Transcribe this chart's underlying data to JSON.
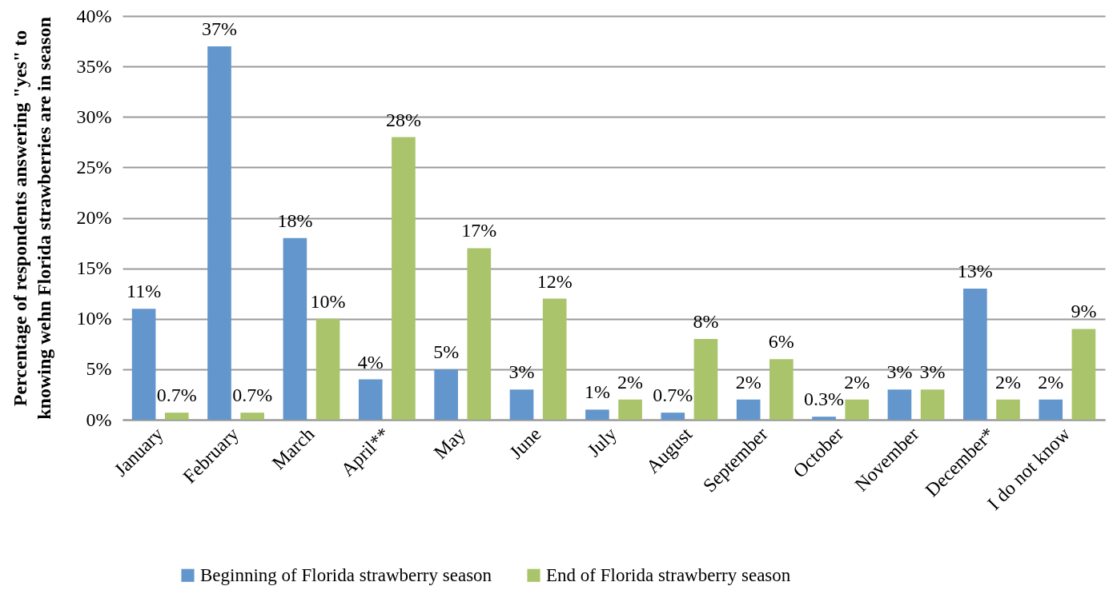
{
  "chart_data": {
    "type": "bar",
    "ylabel": "Percentage of respondents answering \"yes\" to knowing wehn Florida strawberries are in season",
    "categories": [
      "January",
      "February",
      "March",
      "April**",
      "May",
      "June",
      "July",
      "August",
      "September",
      "October",
      "November",
      "December*",
      "I do not know"
    ],
    "series": [
      {
        "name": "Beginning of Florida strawberry season",
        "color": "#6396cc",
        "values": [
          11,
          37,
          18,
          4,
          5,
          3,
          1,
          0.7,
          2,
          0.3,
          3,
          13,
          2
        ],
        "value_labels": [
          "11%",
          "37%",
          "18%",
          "4%",
          "5%",
          "3%",
          "1%",
          "0.7%",
          "2%",
          "0.3%",
          "3%",
          "13%",
          "2%"
        ]
      },
      {
        "name": "End of Florida strawberry season",
        "color": "#a9c46b",
        "values": [
          0.7,
          0.7,
          10,
          28,
          17,
          12,
          2,
          8,
          6,
          2,
          3,
          2,
          9
        ],
        "value_labels": [
          "0.7%",
          "0.7%",
          "10%",
          "28%",
          "17%",
          "12%",
          "2%",
          "8%",
          "6%",
          "2%",
          "3%",
          "2%",
          "9%"
        ]
      }
    ],
    "ylim": [
      0,
      40
    ],
    "yticks": [
      {
        "value": 0,
        "label": "0%"
      },
      {
        "value": 5,
        "label": "5%"
      },
      {
        "value": 10,
        "label": "10%"
      },
      {
        "value": 15,
        "label": "15%"
      },
      {
        "value": 20,
        "label": "20%"
      },
      {
        "value": 25,
        "label": "25%"
      },
      {
        "value": 30,
        "label": "30%"
      },
      {
        "value": 35,
        "label": "35%"
      },
      {
        "value": 40,
        "label": "40%"
      }
    ],
    "grid": "y",
    "legend": "bottom"
  }
}
